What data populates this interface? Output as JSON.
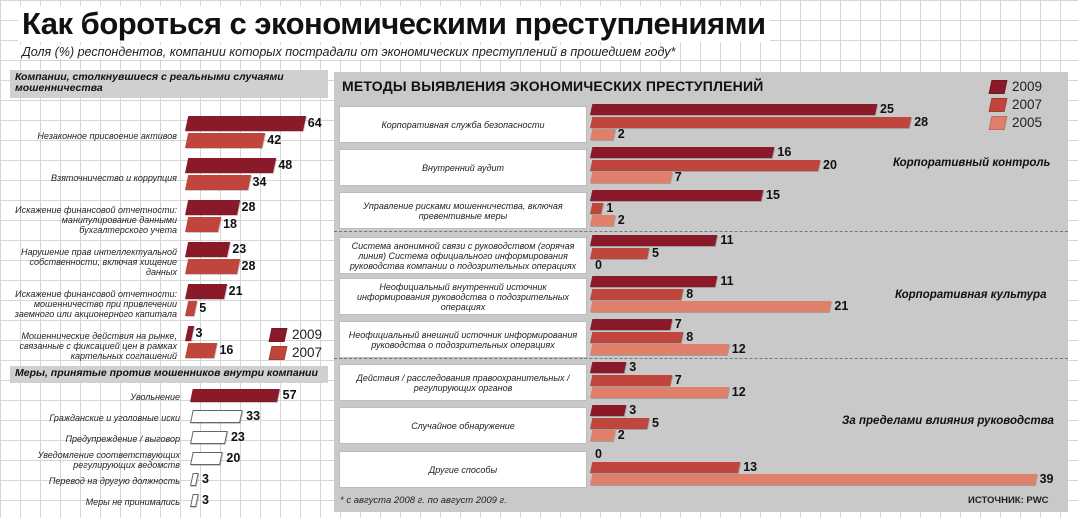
{
  "title": "Как бороться с экономическими преступлениями",
  "subtitle": "Доля (%) респондентов, компании которых пострадали от экономических преступлений в прошедшем году*",
  "colors": {
    "y2009": "#8a1a2a",
    "y2007": "#c0453c",
    "y2005": "#e0806a",
    "panel": "#c9c9c9",
    "header": "#d0d0d0"
  },
  "chart_data": [
    {
      "type": "bar",
      "title": "Компании, столкнувшиеся с реальными случаями мошенничества",
      "legend": [
        "2009",
        "2007"
      ],
      "categories": [
        "Незаконное присвоение активов",
        "Взяточничество и коррупция",
        "Искажение финансовой отчетности: манипулирование данными бухгалтерского учета",
        "Нарушение прав интеллектуальной собственности, включая хищение данных",
        "Искажение финансовой отчетности: мошенничество при привлечении заемного или акционерного капитала",
        "Мошеннические действия на рынке, связанные с фиксацией цен в рамках картельных соглашений"
      ],
      "series": [
        {
          "name": "2009",
          "values": [
            64,
            48,
            28,
            23,
            21,
            3
          ]
        },
        {
          "name": "2007",
          "values": [
            42,
            34,
            18,
            28,
            5,
            16
          ]
        }
      ]
    },
    {
      "type": "bar",
      "title": "Меры, принятые против мошенников внутри компании",
      "categories": [
        "Увольнение",
        "Гражданские и уголовные иски",
        "Предупреждение / выговор",
        "Уведомление соответствующих регулирующих ведомств",
        "Перевод на другую должность",
        "Меры не принимались"
      ],
      "series": [
        {
          "name": "2009",
          "values": [
            57,
            33,
            23,
            20,
            3,
            3
          ]
        }
      ]
    },
    {
      "type": "bar",
      "title": "МЕТОДЫ ВЫЯВЛЕНИЯ ЭКОНОМИЧЕСКИХ ПРЕСТУПЛЕНИЙ",
      "legend": [
        "2009",
        "2007",
        "2005"
      ],
      "groups": [
        "Корпоративный контроль",
        "Корпоративная культура",
        "За пределами влияния руководства"
      ],
      "categories": [
        "Корпоративная служба безопасности",
        "Внутренний аудит",
        "Управление рисками мошенничества, включая превентивные меры",
        "Система анонимной связи с руководством (горячая линия) Система официального информирования руководства компании о подозрительных операциях",
        "Неофициальный внутренний источник информирования руководства о подозрительных операциях",
        "Неофициальный внешний источник информирования руководства о подозрительных операциях",
        "Действия / расследования правоохранительных / регулирующих органов",
        "Случайное обнаружение",
        "Другие способы"
      ],
      "series": [
        {
          "name": "2009",
          "values": [
            25,
            16,
            15,
            11,
            11,
            7,
            3,
            3,
            0
          ]
        },
        {
          "name": "2007",
          "values": [
            28,
            20,
            1,
            5,
            8,
            8,
            7,
            5,
            13
          ]
        },
        {
          "name": "2005",
          "values": [
            2,
            7,
            2,
            0,
            21,
            12,
            12,
            2,
            39
          ]
        }
      ]
    }
  ],
  "footnote": "* с августа 2008 г. по август 2009 г.",
  "source": "ИСТОЧНИК: PWC"
}
